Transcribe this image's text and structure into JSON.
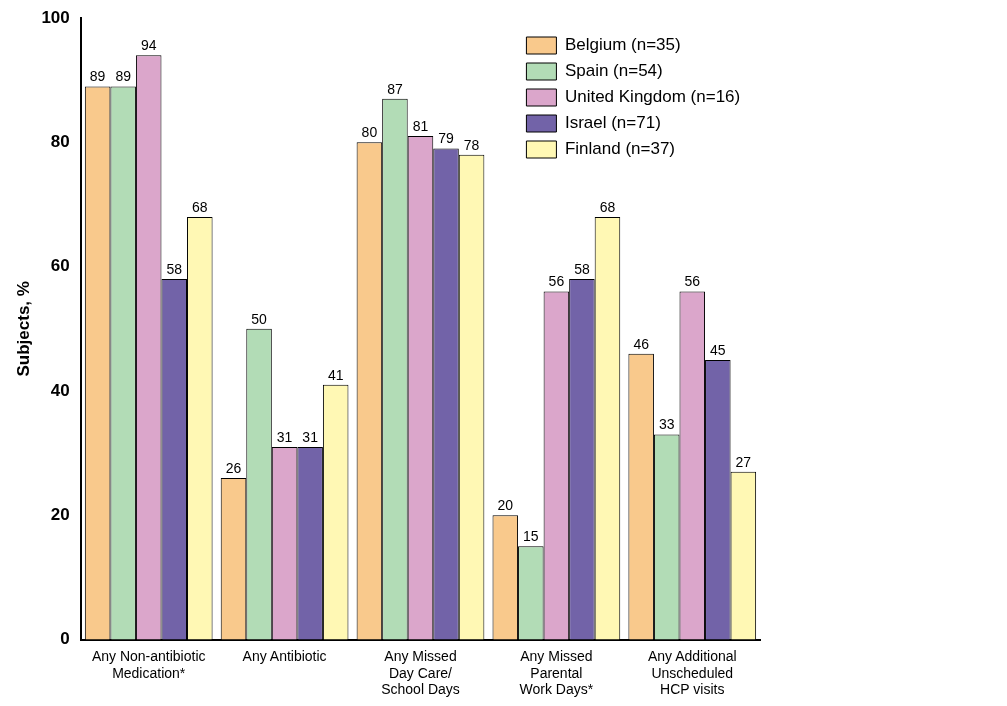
{
  "chart_data": {
    "type": "bar",
    "ylabel": "Subjects, %",
    "categories": [
      "Any Non-antibiotic\nMedication*",
      "Any Antibiotic",
      "Any Missed\nDay Care/\nSchool Days",
      "Any Missed\nParental\nWork Days*",
      "Any Additional\nUnscheduled\nHCP visits"
    ],
    "series": [
      {
        "name": "Belgium (n=35)",
        "color": "#f9c98c",
        "values": [
          89,
          26,
          80,
          20,
          46
        ]
      },
      {
        "name": "Spain (n=54)",
        "color": "#b2dcb6",
        "values": [
          89,
          50,
          87,
          15,
          33
        ]
      },
      {
        "name": "United Kingdom (n=16)",
        "color": "#dba6cb",
        "values": [
          94,
          31,
          81,
          56,
          56
        ]
      },
      {
        "name": "Israel (n=71)",
        "color": "#7263a8",
        "values": [
          58,
          31,
          79,
          58,
          45
        ]
      },
      {
        "name": "Finland (n=37)",
        "color": "#fff8b4",
        "values": [
          68,
          41,
          78,
          68,
          27
        ]
      }
    ],
    "ylim": [
      0,
      100
    ],
    "yticks": [
      0,
      20,
      40,
      60,
      80,
      100
    ],
    "grid": false,
    "legend": "top right",
    "data_labels": true
  }
}
